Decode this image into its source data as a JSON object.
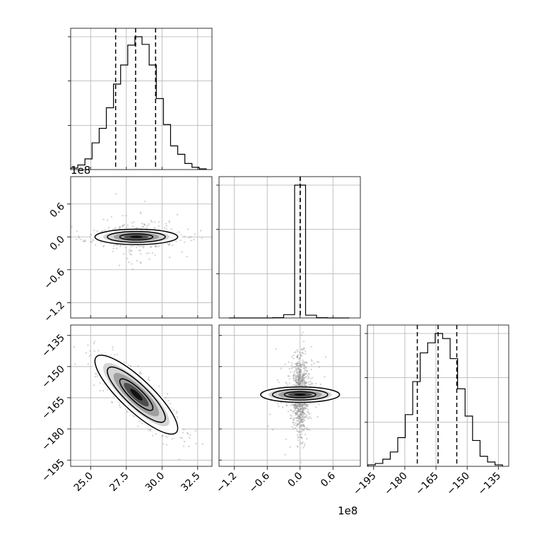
{
  "chart_data": {
    "type": "corner",
    "title": "",
    "parameters": [
      {
        "index": 0,
        "range": [
          23.6,
          33.5
        ],
        "ticks": [
          25.0,
          27.5,
          30.0,
          32.5
        ],
        "tick_labels": [
          "25.0",
          "27.5",
          "30.0",
          "32.5"
        ]
      },
      {
        "index": 1,
        "range": [
          -148000000.0,
          110000000.0
        ],
        "ticks": [
          -120000000.0,
          -60000000.0,
          0.0,
          60000000.0
        ],
        "tick_labels": [
          "−1.2",
          "−0.6",
          "0.0",
          "0.6"
        ],
        "offset_text": "1e8"
      },
      {
        "index": 2,
        "range": [
          -198,
          -130
        ],
        "ticks": [
          -195,
          -180,
          -165,
          -150,
          -135
        ],
        "tick_labels": [
          "−195",
          "−180",
          "−165",
          "−150",
          "−135"
        ]
      }
    ],
    "histograms": [
      {
        "param": 0,
        "bin_centers": [
          23.85,
          24.35,
          24.85,
          25.35,
          25.85,
          26.35,
          26.85,
          27.35,
          27.85,
          28.35,
          28.85,
          29.35,
          29.85,
          30.35,
          30.85,
          31.35,
          31.85,
          32.35,
          32.85
        ],
        "counts": [
          2,
          6,
          14,
          35,
          54,
          81,
          112,
          137,
          163,
          174,
          164,
          137,
          93,
          59,
          31,
          20,
          8,
          3,
          1
        ],
        "quantiles": [
          26.75,
          28.15,
          29.55
        ]
      },
      {
        "param": 1,
        "bin_centers": [
          -120000000.0,
          -100000000.0,
          -80000000.0,
          -60000000.0,
          -40000000.0,
          -20000000.0,
          0.0,
          20000000.0,
          40000000.0,
          60000000.0,
          80000000.0
        ],
        "counts": [
          0,
          0,
          0,
          0,
          1,
          12,
          480,
          10,
          1,
          0,
          0
        ],
        "quantiles": [
          0.0,
          100000.0,
          200000.0
        ]
      },
      {
        "param": 2,
        "bin_centers": [
          -196,
          -192.4,
          -188.8,
          -185.2,
          -181.6,
          -178,
          -174.4,
          -170.8,
          -167.2,
          -163.6,
          -160,
          -156.4,
          -152.8,
          -149.2,
          -145.6,
          -142,
          -138.4,
          -134.8
        ],
        "counts": [
          2,
          4,
          10,
          20,
          40,
          72,
          118,
          158,
          172,
          185,
          178,
          150,
          108,
          70,
          36,
          14,
          6,
          2
        ],
        "quantiles": [
          -174,
          -164,
          -155
        ]
      }
    ],
    "scatter_panels": [
      {
        "x_param": 0,
        "y_param": 1,
        "center": [
          28.2,
          0.0
        ],
        "correlation": 0.0
      },
      {
        "x_param": 0,
        "y_param": 2,
        "center": [
          28.2,
          -163.5
        ],
        "correlation": -0.85
      },
      {
        "x_param": 1,
        "y_param": 2,
        "center": [
          0.0,
          -163.5
        ],
        "correlation": 0.0
      }
    ]
  }
}
